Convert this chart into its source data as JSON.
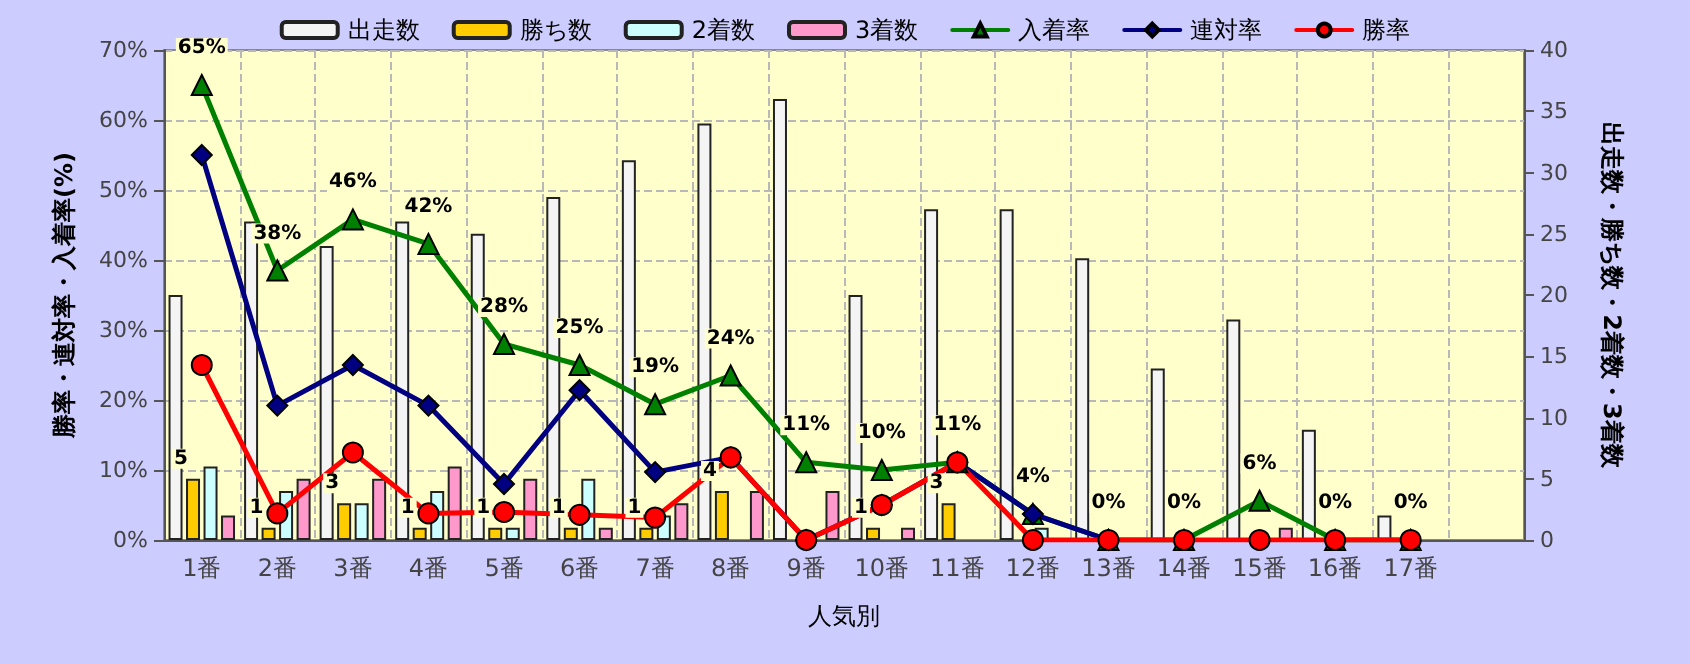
{
  "chart_data": {
    "type": "bar",
    "xlabel": "人気別",
    "ylabel": "勝率・連対率・入着率(%)",
    "y2label": "出走数・勝ち数・2着数・3着数",
    "categories": [
      "1番",
      "2番",
      "3番",
      "4番",
      "5番",
      "6番",
      "7番",
      "8番",
      "9番",
      "10番",
      "11番",
      "12番",
      "13番",
      "14番",
      "15番",
      "16番",
      "17番",
      null
    ],
    "series": [
      {
        "name": "出走数",
        "axis": "y2",
        "color": "#f4f4f4",
        "values": [
          20,
          26,
          24,
          26,
          25,
          28,
          31,
          34,
          36,
          20,
          27,
          27,
          23,
          14,
          18,
          9,
          2,
          null
        ]
      },
      {
        "name": "勝ち数",
        "axis": "y2",
        "color": "#ffcc00",
        "values": [
          5,
          1,
          3,
          1,
          1,
          1,
          1,
          4,
          0,
          1,
          3,
          0,
          0,
          0,
          0,
          0,
          0,
          null
        ],
        "value_labels": [
          "5",
          "1",
          "3",
          "1",
          "1",
          "1",
          "1",
          "4",
          null,
          "1",
          "3",
          null,
          null,
          null,
          null,
          null,
          null,
          null
        ]
      },
      {
        "name": "2着数",
        "axis": "y2",
        "color": "#ccffff",
        "values": [
          6,
          4,
          3,
          4,
          1,
          5,
          2,
          0,
          0,
          0,
          0,
          1,
          0,
          0,
          0,
          0,
          0,
          null
        ]
      },
      {
        "name": "3着数",
        "axis": "y2",
        "color": "#ff99cc",
        "values": [
          2,
          5,
          5,
          6,
          5,
          1,
          3,
          4,
          4,
          1,
          0,
          0,
          0,
          0,
          1,
          0,
          0,
          null
        ]
      },
      {
        "name": "入着率",
        "type": "line",
        "axis": "y",
        "marker": "triangle",
        "color": "#008000",
        "values": [
          65,
          38.5,
          45.8,
          42.3,
          28,
          25,
          19.4,
          23.5,
          11.1,
          10,
          11.1,
          3.7,
          0,
          0,
          5.6,
          0,
          0,
          null
        ],
        "value_labels": [
          "65%",
          "38%",
          "46%",
          "42%",
          "28%",
          "25%",
          "19%",
          "24%",
          "11%",
          "10%",
          "11%",
          "4%",
          "0%",
          "0%",
          "6%",
          "0%",
          "0%",
          null
        ]
      },
      {
        "name": "連対率",
        "type": "line",
        "axis": "y",
        "marker": "diamond",
        "color": "#000080",
        "values": [
          55,
          19.2,
          25,
          19.2,
          8,
          21.4,
          9.7,
          11.8,
          0,
          5,
          11.1,
          3.7,
          0,
          null,
          null,
          null,
          null,
          null
        ]
      },
      {
        "name": "勝率",
        "type": "line",
        "axis": "y",
        "marker": "circle",
        "color": "#ff0000",
        "values": [
          25,
          3.8,
          12.5,
          3.8,
          4,
          3.6,
          3.2,
          11.8,
          0,
          5,
          11.1,
          0,
          0,
          0,
          0,
          0,
          0,
          null
        ]
      }
    ],
    "ylim": [
      0,
      70
    ],
    "yticks": [
      {
        "value": 0,
        "label": "0%"
      },
      {
        "value": 10,
        "label": "10%"
      },
      {
        "value": 20,
        "label": "20%"
      },
      {
        "value": 30,
        "label": "30%"
      },
      {
        "value": 40,
        "label": "40%"
      },
      {
        "value": 50,
        "label": "50%"
      },
      {
        "value": 60,
        "label": "60%"
      },
      {
        "value": 70,
        "label": "70%"
      }
    ],
    "y2lim": [
      0,
      40
    ],
    "y2ticks": [
      0,
      5,
      10,
      15,
      20,
      25,
      30,
      35,
      40
    ],
    "grid": true,
    "legend": "top",
    "line_style": "solid"
  }
}
